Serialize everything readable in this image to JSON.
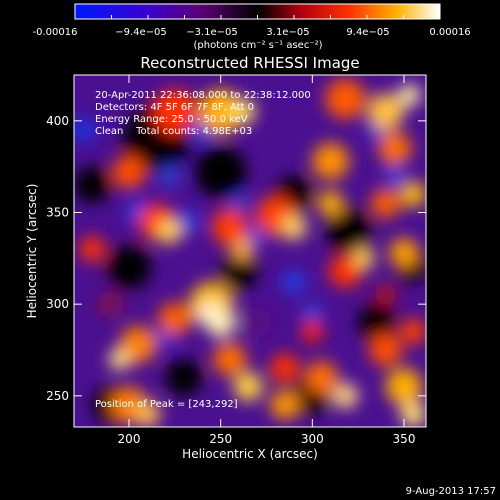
{
  "colorbar": {
    "tick_labels": [
      "-0.00016",
      "−9.4e−05",
      "−3.1e−05",
      "3.1e−05",
      "9.4e−05",
      "0.00016"
    ],
    "units": "(photons cm⁻² s⁻¹ asec⁻²)"
  },
  "chart_data": {
    "type": "heatmap",
    "title": "Reconstructed RHESSI Image",
    "xlabel": "Heliocentric X (arcsec)",
    "ylabel": "Heliocentric Y (arcsec)",
    "xlim": [
      170,
      362
    ],
    "ylim": [
      233,
      425
    ],
    "x_ticks": [
      200,
      250,
      300,
      350
    ],
    "y_ticks": [
      250,
      300,
      350,
      400
    ],
    "color_range": [
      -0.00016,
      0.00016
    ],
    "colormap": "blue-purple-red-yellow-white",
    "grid": false,
    "annotations": {
      "time_range": "20-Apr-2011 22:36:08.000 to 22:38:12.000",
      "detectors": "Detectors: 4F 5F 6F 7F 8F, Att 0",
      "energy": "Energy Range: 25.0 - 50.0 keV",
      "clean": "Clean    Total counts: 4.98E+03",
      "peak": "Position of Peak = [243,292]"
    },
    "peak": [
      243,
      292
    ]
  },
  "footer": {
    "date": "9-Aug-2013 17:57"
  }
}
